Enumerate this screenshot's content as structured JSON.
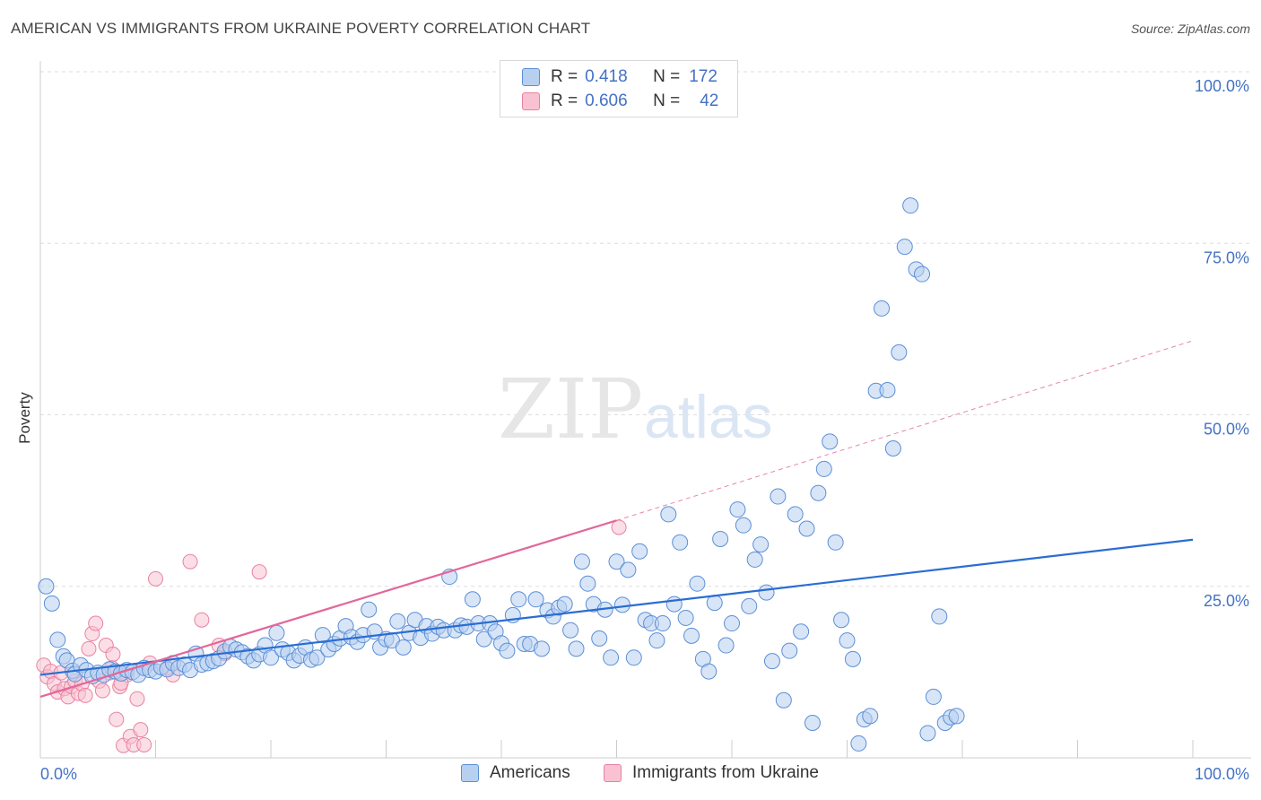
{
  "header": {
    "title": "AMERICAN VS IMMIGRANTS FROM UKRAINE POVERTY CORRELATION CHART",
    "source": "Source: ZipAtlas.com"
  },
  "watermark": {
    "zip": "ZIP",
    "atlas": "atlas"
  },
  "legend_top": {
    "rows": [
      {
        "r_label": "R =",
        "r_value": "0.418",
        "n_label": "N =",
        "n_value": "172"
      },
      {
        "r_label": "R =",
        "r_value": "0.606",
        "n_label": "N =",
        "n_value": "42"
      }
    ]
  },
  "legend_bottom": {
    "americans": "Americans",
    "ukraine": "Immigrants from Ukraine"
  },
  "colors": {
    "blue_fill": "#b8d0f0",
    "blue_stroke": "#5b8fd6",
    "blue_line": "#2a6dd2",
    "pink_fill": "#f8c2d2",
    "pink_stroke": "#e882a2",
    "pink_line": "#e2679a",
    "axis_label": "#4472c4",
    "grid": "#dddddd"
  },
  "chart_data": {
    "type": "scatter",
    "title": "AMERICAN VS IMMIGRANTS FROM UKRAINE POVERTY CORRELATION CHART",
    "xlabel": "",
    "ylabel": "Poverty",
    "xlim": [
      0,
      100
    ],
    "ylim": [
      0,
      100
    ],
    "x_tick_labels": [
      "0.0%",
      "100.0%"
    ],
    "y_ticks": [
      25,
      50,
      75,
      100
    ],
    "y_tick_labels": [
      "25.0%",
      "50.0%",
      "75.0%",
      "100.0%"
    ],
    "grid": true,
    "legend_position": "top-center",
    "series": [
      {
        "name": "Americans",
        "r": 0.418,
        "n": 172,
        "trend": {
          "x": [
            0,
            100
          ],
          "y": [
            12.1,
            31.8
          ]
        },
        "points": [
          [
            0.5,
            25
          ],
          [
            1,
            22.5
          ],
          [
            1.5,
            17.2
          ],
          [
            2,
            14.8
          ],
          [
            2.3,
            14.2
          ],
          [
            2.8,
            12.7
          ],
          [
            3,
            12.2
          ],
          [
            3.5,
            13.5
          ],
          [
            4,
            12.8
          ],
          [
            4.5,
            11.9
          ],
          [
            5,
            12.4
          ],
          [
            5.5,
            12.1
          ],
          [
            6,
            12.9
          ],
          [
            6.5,
            12.6
          ],
          [
            7,
            12.3
          ],
          [
            7.5,
            12.8
          ],
          [
            8,
            12.5
          ],
          [
            8.5,
            12.1
          ],
          [
            9,
            13.1
          ],
          [
            9.5,
            12.8
          ],
          [
            10,
            12.6
          ],
          [
            10.5,
            13.2
          ],
          [
            11,
            12.9
          ],
          [
            11.5,
            13.8
          ],
          [
            12,
            13.1
          ],
          [
            12.5,
            13.6
          ],
          [
            13,
            12.8
          ],
          [
            13.5,
            15.2
          ],
          [
            14,
            13.6
          ],
          [
            14.5,
            13.8
          ],
          [
            15,
            14.1
          ],
          [
            15.5,
            14.5
          ],
          [
            16,
            15.5
          ],
          [
            16.5,
            16.2
          ],
          [
            17,
            15.8
          ],
          [
            17.5,
            15.4
          ],
          [
            18,
            14.8
          ],
          [
            18.5,
            14.2
          ],
          [
            19,
            15.1
          ],
          [
            19.5,
            16.4
          ],
          [
            20,
            14.6
          ],
          [
            20.5,
            18.2
          ],
          [
            21,
            15.8
          ],
          [
            21.5,
            15.3
          ],
          [
            22,
            14.2
          ],
          [
            22.5,
            14.9
          ],
          [
            23,
            16.1
          ],
          [
            23.5,
            14.3
          ],
          [
            24,
            14.6
          ],
          [
            24.5,
            17.9
          ],
          [
            25,
            15.8
          ],
          [
            25.5,
            16.6
          ],
          [
            26,
            17.4
          ],
          [
            26.5,
            19.2
          ],
          [
            27,
            17.6
          ],
          [
            27.5,
            16.9
          ],
          [
            28,
            17.9
          ],
          [
            28.5,
            21.6
          ],
          [
            29,
            18.4
          ],
          [
            29.5,
            16.1
          ],
          [
            30,
            17.3
          ],
          [
            30.5,
            17.1
          ],
          [
            31,
            19.9
          ],
          [
            31.5,
            16.1
          ],
          [
            32,
            18.2
          ],
          [
            32.5,
            20.1
          ],
          [
            33,
            17.5
          ],
          [
            33.5,
            19.2
          ],
          [
            34,
            18.1
          ],
          [
            34.5,
            19.1
          ],
          [
            35,
            18.6
          ],
          [
            35.5,
            26.4
          ],
          [
            36,
            18.6
          ],
          [
            36.5,
            19.3
          ],
          [
            37,
            19.1
          ],
          [
            37.5,
            23.1
          ],
          [
            38,
            19.6
          ],
          [
            38.5,
            17.3
          ],
          [
            39,
            19.6
          ],
          [
            39.5,
            18.4
          ],
          [
            40,
            16.7
          ],
          [
            40.5,
            15.6
          ],
          [
            41,
            20.8
          ],
          [
            41.5,
            23.1
          ],
          [
            42,
            16.6
          ],
          [
            42.5,
            16.6
          ],
          [
            43,
            23.1
          ],
          [
            43.5,
            15.9
          ],
          [
            44,
            21.5
          ],
          [
            44.5,
            20.6
          ],
          [
            45,
            21.9
          ],
          [
            45.5,
            22.4
          ],
          [
            46,
            18.6
          ],
          [
            46.5,
            15.9
          ],
          [
            47,
            28.6
          ],
          [
            47.5,
            25.4
          ],
          [
            48,
            22.4
          ],
          [
            48.5,
            17.4
          ],
          [
            49,
            21.6
          ],
          [
            49.5,
            14.6
          ],
          [
            50,
            28.6
          ],
          [
            50.5,
            22.3
          ],
          [
            51,
            27.4
          ],
          [
            51.5,
            14.6
          ],
          [
            52,
            30.1
          ],
          [
            52.5,
            20.1
          ],
          [
            53,
            19.6
          ],
          [
            53.5,
            17.1
          ],
          [
            54,
            19.6
          ],
          [
            54.5,
            35.5
          ],
          [
            55,
            22.4
          ],
          [
            55.5,
            31.4
          ],
          [
            56,
            20.4
          ],
          [
            56.5,
            17.8
          ],
          [
            57,
            25.4
          ],
          [
            57.5,
            14.4
          ],
          [
            58,
            12.6
          ],
          [
            58.5,
            22.6
          ],
          [
            59,
            31.9
          ],
          [
            59.5,
            16.4
          ],
          [
            60,
            19.6
          ],
          [
            60.5,
            36.2
          ],
          [
            61,
            33.9
          ],
          [
            61.5,
            22.1
          ],
          [
            62,
            28.9
          ],
          [
            62.5,
            31.1
          ],
          [
            63,
            24.1
          ],
          [
            63.5,
            14.1
          ],
          [
            64,
            38.1
          ],
          [
            64.5,
            8.4
          ],
          [
            65,
            15.6
          ],
          [
            65.5,
            35.5
          ],
          [
            66,
            18.4
          ],
          [
            66.5,
            33.4
          ],
          [
            67,
            5.1
          ],
          [
            67.5,
            38.6
          ],
          [
            68,
            42.1
          ],
          [
            68.5,
            46.1
          ],
          [
            69,
            31.4
          ],
          [
            69.5,
            20.1
          ],
          [
            70,
            17.1
          ],
          [
            70.5,
            14.4
          ],
          [
            71,
            2.1
          ],
          [
            71.5,
            5.6
          ],
          [
            72,
            6.1
          ],
          [
            72.5,
            53.5
          ],
          [
            73,
            65.5
          ],
          [
            73.5,
            53.6
          ],
          [
            74,
            45.1
          ],
          [
            74.5,
            59.1
          ],
          [
            75,
            74.5
          ],
          [
            75.5,
            80.5
          ],
          [
            76,
            71.2
          ],
          [
            76.5,
            70.5
          ],
          [
            77,
            3.6
          ],
          [
            77.5,
            8.9
          ],
          [
            78,
            20.6
          ],
          [
            78.5,
            5.1
          ],
          [
            79,
            5.9
          ],
          [
            79.5,
            6.1
          ]
        ],
        "raw_points_note": ""
      },
      {
        "name": "Immigrants from Ukraine",
        "r": 0.606,
        "n": 42,
        "trend": {
          "x": [
            0,
            50
          ],
          "y": [
            8.9,
            34.6
          ]
        },
        "trend_dashed": {
          "x": [
            50,
            100
          ],
          "y": [
            34.6,
            60.8
          ]
        },
        "points": [
          [
            0.3,
            13.5
          ],
          [
            0.6,
            11.8
          ],
          [
            0.9,
            12.6
          ],
          [
            1.2,
            10.8
          ],
          [
            1.5,
            9.6
          ],
          [
            1.8,
            12.4
          ],
          [
            2.1,
            10.1
          ],
          [
            2.4,
            8.9
          ],
          [
            2.7,
            10.4
          ],
          [
            3,
            11.2
          ],
          [
            3.3,
            9.4
          ],
          [
            3.6,
            10.8
          ],
          [
            3.9,
            9.1
          ],
          [
            4.2,
            15.9
          ],
          [
            4.5,
            18.1
          ],
          [
            4.8,
            19.6
          ],
          [
            5.1,
            11.2
          ],
          [
            5.4,
            9.8
          ],
          [
            5.7,
            16.4
          ],
          [
            6,
            12.4
          ],
          [
            6.3,
            15.1
          ],
          [
            6.6,
            5.6
          ],
          [
            6.9,
            10.4
          ],
          [
            7.2,
            1.8
          ],
          [
            7.5,
            12.1
          ],
          [
            7.8,
            3.1
          ],
          [
            8.1,
            1.9
          ],
          [
            8.4,
            8.6
          ],
          [
            8.7,
            4.1
          ],
          [
            9,
            1.9
          ],
          [
            10,
            26.1
          ],
          [
            11.5,
            12.1
          ],
          [
            13,
            28.6
          ],
          [
            14,
            20.1
          ],
          [
            15.5,
            16.4
          ],
          [
            19,
            27.1
          ],
          [
            50.2,
            33.6
          ],
          [
            16,
            15.2
          ],
          [
            11,
            13.1
          ],
          [
            9.5,
            13.8
          ],
          [
            7,
            10.9
          ],
          [
            6.2,
            13.1
          ]
        ]
      }
    ]
  }
}
